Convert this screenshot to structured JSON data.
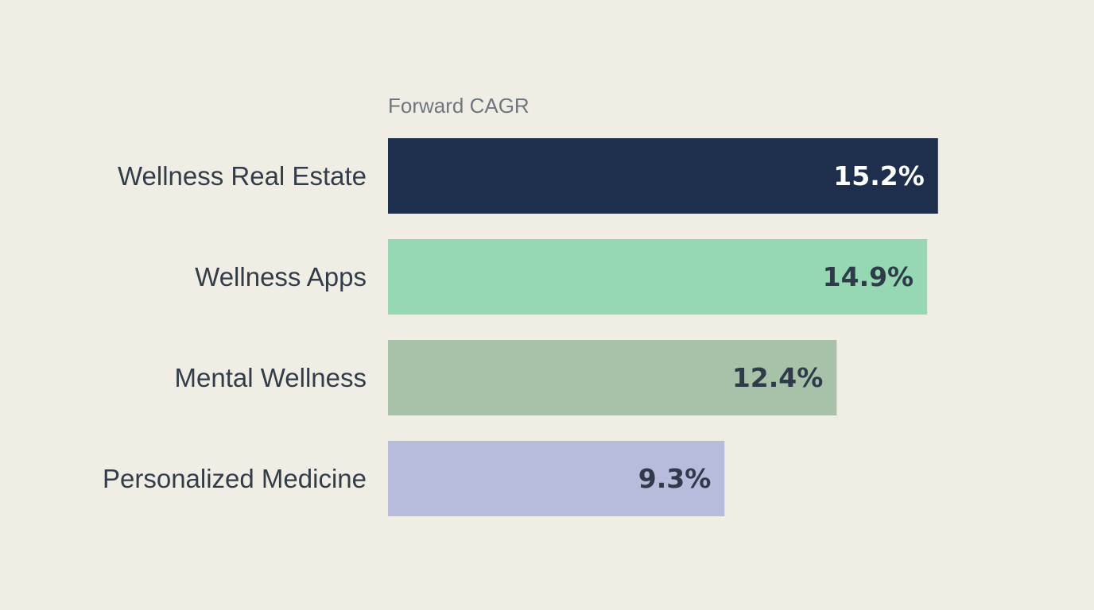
{
  "chart_data": {
    "type": "bar",
    "orientation": "horizontal",
    "title": "Forward CAGR",
    "xlabel": "",
    "ylabel": "",
    "unit": "%",
    "grid": false,
    "legend": "none",
    "xlim": [
      0,
      15.6
    ],
    "categories": [
      "Wellness Real Estate",
      "Wellness Apps",
      "Mental Wellness",
      "Personalized Medicine"
    ],
    "values": [
      15.2,
      14.9,
      12.4,
      9.3
    ],
    "value_labels": [
      "15.2%",
      "14.9%",
      "12.4%",
      "9.3%"
    ],
    "bar_colors": [
      "#1e2f4d",
      "#95d8b3",
      "#a8c2aa",
      "#b7bcdc"
    ],
    "label_colors": [
      "#ffffff",
      "#2f3b48",
      "#2f3b48",
      "#2f3b48"
    ]
  },
  "style": {
    "background": "#f0ede5",
    "text_color": "#333d49",
    "title_color": "#6f7680"
  }
}
